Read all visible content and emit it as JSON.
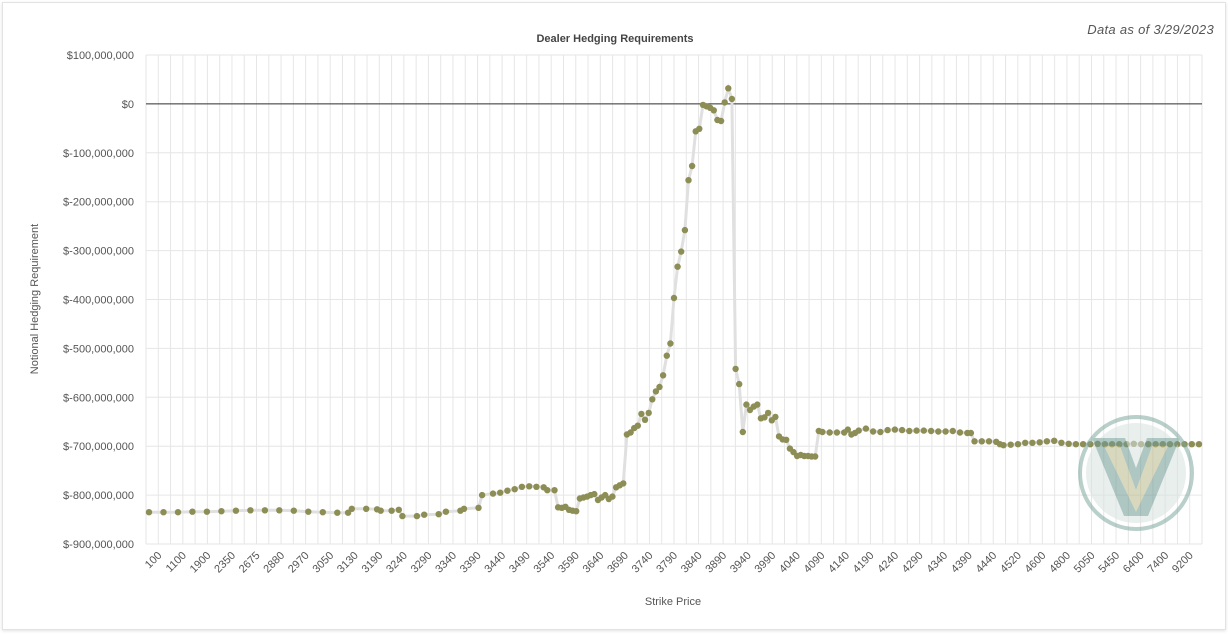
{
  "data_as_of": "Data as of 3/29/2023",
  "colors": {
    "points": "#8d8d56",
    "line": "#e0e0e0",
    "zero_line": "#333333",
    "grid": "#e6e6e6",
    "watermark": "#6f9a92"
  },
  "logo": "v-logo-watermark",
  "chart_data": {
    "type": "scatter",
    "title": "Dealer Hedging Requirements",
    "xlabel": "Strike Price",
    "ylabel": "Notional Hedging Requirement",
    "ylim": [
      -900000000,
      100000000
    ],
    "y_ticks": [
      "$100,000,000",
      "$0",
      "$-100,000,000",
      "$-200,000,000",
      "$-300,000,000",
      "$-400,000,000",
      "$-500,000,000",
      "$-600,000,000",
      "$-700,000,000",
      "$-800,000,000",
      "$-900,000,000"
    ],
    "x_tick_labels": [
      "100",
      "1100",
      "1900",
      "2350",
      "2675",
      "2880",
      "2970",
      "3050",
      "3130",
      "3190",
      "3240",
      "3290",
      "3340",
      "3390",
      "3440",
      "3490",
      "3540",
      "3590",
      "3640",
      "3690",
      "3740",
      "3790",
      "3840",
      "3890",
      "3940",
      "3990",
      "4040",
      "4090",
      "4140",
      "4190",
      "4240",
      "4290",
      "4340",
      "4390",
      "4440",
      "4520",
      "4600",
      "4800",
      "5050",
      "5450",
      "6400",
      "7400",
      "9200"
    ],
    "grid": true,
    "zero_line": true,
    "x_scale": "categorical strikes (index)",
    "points": [
      {
        "i": 0,
        "y": -835
      },
      {
        "i": 4,
        "y": -835
      },
      {
        "i": 8,
        "y": -835
      },
      {
        "i": 12,
        "y": -834
      },
      {
        "i": 16,
        "y": -834
      },
      {
        "i": 20,
        "y": -833
      },
      {
        "i": 24,
        "y": -832
      },
      {
        "i": 28,
        "y": -831
      },
      {
        "i": 32,
        "y": -831
      },
      {
        "i": 36,
        "y": -831
      },
      {
        "i": 40,
        "y": -832
      },
      {
        "i": 44,
        "y": -834
      },
      {
        "i": 48,
        "y": -835
      },
      {
        "i": 52,
        "y": -836
      },
      {
        "i": 55,
        "y": -836
      },
      {
        "i": 56,
        "y": -828
      },
      {
        "i": 60,
        "y": -828
      },
      {
        "i": 63,
        "y": -829
      },
      {
        "i": 64,
        "y": -832
      },
      {
        "i": 67,
        "y": -832
      },
      {
        "i": 69,
        "y": -830
      },
      {
        "i": 70,
        "y": -843
      },
      {
        "i": 74,
        "y": -843
      },
      {
        "i": 76,
        "y": -840
      },
      {
        "i": 80,
        "y": -839
      },
      {
        "i": 82,
        "y": -834
      },
      {
        "i": 86,
        "y": -832
      },
      {
        "i": 87,
        "y": -828
      },
      {
        "i": 91,
        "y": -826
      },
      {
        "i": 92,
        "y": -800
      },
      {
        "i": 95,
        "y": -797
      },
      {
        "i": 97,
        "y": -795
      },
      {
        "i": 99,
        "y": -791
      },
      {
        "i": 101,
        "y": -788
      },
      {
        "i": 103,
        "y": -783
      },
      {
        "i": 105,
        "y": -782
      },
      {
        "i": 107,
        "y": -783
      },
      {
        "i": 109,
        "y": -784
      },
      {
        "i": 110,
        "y": -790
      },
      {
        "i": 112,
        "y": -790
      },
      {
        "i": 113,
        "y": -825
      },
      {
        "i": 114,
        "y": -826
      },
      {
        "i": 115,
        "y": -824
      },
      {
        "i": 116,
        "y": -830
      },
      {
        "i": 117,
        "y": -832
      },
      {
        "i": 118,
        "y": -833
      },
      {
        "i": 119,
        "y": -807
      },
      {
        "i": 120,
        "y": -805
      },
      {
        "i": 121,
        "y": -803
      },
      {
        "i": 122,
        "y": -800
      },
      {
        "i": 123,
        "y": -798
      },
      {
        "i": 124,
        "y": -810
      },
      {
        "i": 125,
        "y": -805
      },
      {
        "i": 126,
        "y": -800
      },
      {
        "i": 127,
        "y": -808
      },
      {
        "i": 128,
        "y": -803
      },
      {
        "i": 129,
        "y": -784
      },
      {
        "i": 130,
        "y": -780
      },
      {
        "i": 131,
        "y": -776
      },
      {
        "i": 132,
        "y": -676
      },
      {
        "i": 133,
        "y": -672
      },
      {
        "i": 134,
        "y": -663
      },
      {
        "i": 135,
        "y": -658
      },
      {
        "i": 136,
        "y": -634
      },
      {
        "i": 137,
        "y": -646
      },
      {
        "i": 138,
        "y": -632
      },
      {
        "i": 139,
        "y": -604
      },
      {
        "i": 140,
        "y": -588
      },
      {
        "i": 141,
        "y": -579
      },
      {
        "i": 142,
        "y": -555
      },
      {
        "i": 143,
        "y": -515
      },
      {
        "i": 144,
        "y": -490
      },
      {
        "i": 145,
        "y": -397
      },
      {
        "i": 146,
        "y": -333
      },
      {
        "i": 147,
        "y": -302
      },
      {
        "i": 148,
        "y": -258
      },
      {
        "i": 149,
        "y": -156
      },
      {
        "i": 150,
        "y": -127
      },
      {
        "i": 151,
        "y": -56
      },
      {
        "i": 152,
        "y": -51
      },
      {
        "i": 153,
        "y": -2
      },
      {
        "i": 154,
        "y": -5
      },
      {
        "i": 155,
        "y": -8
      },
      {
        "i": 156,
        "y": -13
      },
      {
        "i": 157,
        "y": -33
      },
      {
        "i": 158,
        "y": -35
      },
      {
        "i": 159,
        "y": 3
      },
      {
        "i": 160,
        "y": 32
      },
      {
        "i": 161,
        "y": 10
      },
      {
        "i": 162,
        "y": -542
      },
      {
        "i": 163,
        "y": -573
      },
      {
        "i": 164,
        "y": -671
      },
      {
        "i": 165,
        "y": -615
      },
      {
        "i": 166,
        "y": -626
      },
      {
        "i": 167,
        "y": -619
      },
      {
        "i": 168,
        "y": -615
      },
      {
        "i": 169,
        "y": -643
      },
      {
        "i": 170,
        "y": -641
      },
      {
        "i": 171,
        "y": -632
      },
      {
        "i": 172,
        "y": -647
      },
      {
        "i": 173,
        "y": -640
      },
      {
        "i": 174,
        "y": -680
      },
      {
        "i": 175,
        "y": -686
      },
      {
        "i": 176,
        "y": -687
      },
      {
        "i": 177,
        "y": -705
      },
      {
        "i": 178,
        "y": -712
      },
      {
        "i": 179,
        "y": -720
      },
      {
        "i": 180,
        "y": -718
      },
      {
        "i": 181,
        "y": -720
      },
      {
        "i": 182,
        "y": -720
      },
      {
        "i": 183,
        "y": -721
      },
      {
        "i": 184,
        "y": -721
      },
      {
        "i": 185,
        "y": -669
      },
      {
        "i": 186,
        "y": -671
      },
      {
        "i": 188,
        "y": -672
      },
      {
        "i": 190,
        "y": -672
      },
      {
        "i": 192,
        "y": -672
      },
      {
        "i": 193,
        "y": -666
      },
      {
        "i": 194,
        "y": -676
      },
      {
        "i": 195,
        "y": -673
      },
      {
        "i": 196,
        "y": -668
      },
      {
        "i": 198,
        "y": -664
      },
      {
        "i": 200,
        "y": -670
      },
      {
        "i": 202,
        "y": -671
      },
      {
        "i": 204,
        "y": -667
      },
      {
        "i": 206,
        "y": -666
      },
      {
        "i": 208,
        "y": -667
      },
      {
        "i": 210,
        "y": -669
      },
      {
        "i": 212,
        "y": -668
      },
      {
        "i": 214,
        "y": -668
      },
      {
        "i": 216,
        "y": -669
      },
      {
        "i": 218,
        "y": -670
      },
      {
        "i": 220,
        "y": -670
      },
      {
        "i": 222,
        "y": -669
      },
      {
        "i": 224,
        "y": -672
      },
      {
        "i": 226,
        "y": -673
      },
      {
        "i": 227,
        "y": -673
      },
      {
        "i": 228,
        "y": -690
      },
      {
        "i": 230,
        "y": -690
      },
      {
        "i": 232,
        "y": -690
      },
      {
        "i": 234,
        "y": -691
      },
      {
        "i": 235,
        "y": -696
      },
      {
        "i": 236,
        "y": -698
      },
      {
        "i": 238,
        "y": -697
      },
      {
        "i": 240,
        "y": -696
      },
      {
        "i": 242,
        "y": -693
      },
      {
        "i": 244,
        "y": -693
      },
      {
        "i": 246,
        "y": -692
      },
      {
        "i": 248,
        "y": -690
      },
      {
        "i": 250,
        "y": -689
      },
      {
        "i": 252,
        "y": -693
      },
      {
        "i": 254,
        "y": -695
      },
      {
        "i": 256,
        "y": -696
      },
      {
        "i": 258,
        "y": -696
      },
      {
        "i": 260,
        "y": -696
      },
      {
        "i": 262,
        "y": -695
      },
      {
        "i": 264,
        "y": -696
      },
      {
        "i": 266,
        "y": -696
      },
      {
        "i": 268,
        "y": -696
      },
      {
        "i": 270,
        "y": -696
      },
      {
        "i": 272,
        "y": -695
      },
      {
        "i": 274,
        "y": -696
      },
      {
        "i": 276,
        "y": -696
      },
      {
        "i": 278,
        "y": -696
      },
      {
        "i": 280,
        "y": -696
      },
      {
        "i": 282,
        "y": -696
      },
      {
        "i": 284,
        "y": -696
      },
      {
        "i": 286,
        "y": -696
      },
      {
        "i": 288,
        "y": -696
      },
      {
        "i": 290,
        "y": -696
      }
    ],
    "y_unit_note_millions": true
  }
}
